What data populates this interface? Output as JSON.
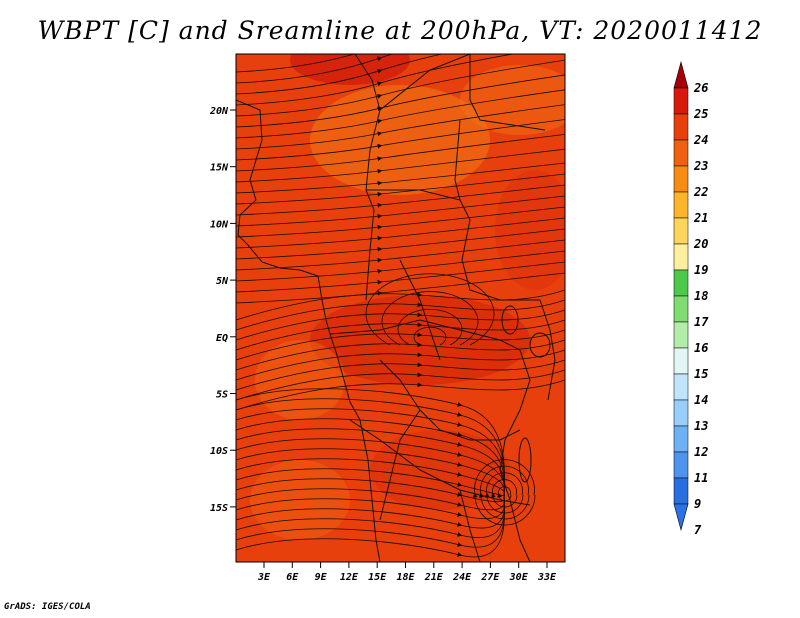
{
  "title": "WBPT [C] and Sreamline at 200hPa, VT: 2020011412",
  "credit": "GrADS: IGES/COLA",
  "map": {
    "lat_ticks": [
      "20N",
      "15N",
      "10N",
      "5N",
      "EQ",
      "5S",
      "10S",
      "15S"
    ],
    "lon_ticks": [
      "3E",
      "6E",
      "9E",
      "12E",
      "15E",
      "18E",
      "21E",
      "24E",
      "27E",
      "30E",
      "33E"
    ],
    "field_base_color": "#e8400c",
    "streamline_color": "#1a0a00"
  },
  "colorbar": {
    "labels": [
      "26",
      "25",
      "24",
      "23",
      "22",
      "21",
      "20",
      "19",
      "18",
      "17",
      "16",
      "15",
      "14",
      "13",
      "12",
      "11",
      "9",
      "7"
    ],
    "colors": [
      "#c0000a",
      "#d81a0c",
      "#e8400c",
      "#f06010",
      "#f88c12",
      "#fcb42a",
      "#fcd65c",
      "#fcf0a0",
      "#4cc94a",
      "#7fdc72",
      "#b4ecaa",
      "#e2f6f6",
      "#bfe4fc",
      "#99cdfa",
      "#6eb0f4",
      "#4c94ee",
      "#2a6fe0",
      "#2b72e6"
    ],
    "top_arrow_color": "#a80008",
    "bottom_arrow_color": "#2b72e6"
  }
}
